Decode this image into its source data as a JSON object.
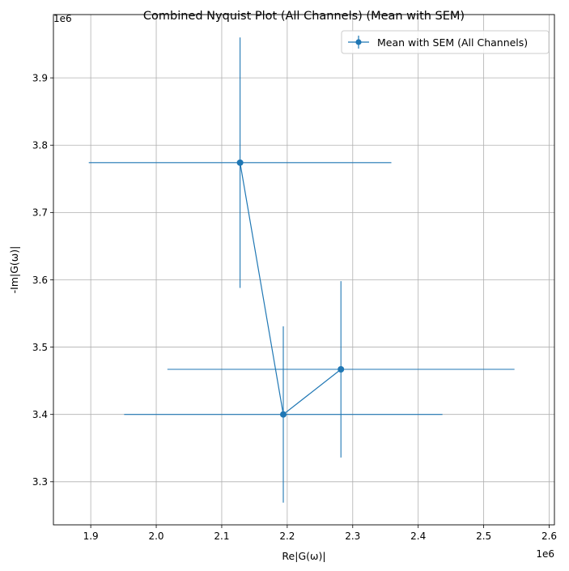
{
  "chart_data": {
    "type": "scatter",
    "title": "Combined Nyquist Plot (All Channels) (Mean with SEM)",
    "xlabel": "Re|G(ω)|",
    "ylabel": "-Im|G(ω)|",
    "x_offset_label": "1e6",
    "y_offset_label": "1e6",
    "xlim": [
      1.843,
      2.608
    ],
    "ylim": [
      3.236,
      3.994
    ],
    "x_ticks": [
      1.9,
      2.0,
      2.1,
      2.2,
      2.3,
      2.4,
      2.5,
      2.6
    ],
    "x_tick_labels": [
      "1.9",
      "2.0",
      "2.1",
      "2.2",
      "2.3",
      "2.4",
      "2.5",
      "2.6"
    ],
    "y_ticks": [
      3.3,
      3.4,
      3.5,
      3.6,
      3.7,
      3.8,
      3.9
    ],
    "y_tick_labels": [
      "3.3",
      "3.4",
      "3.5",
      "3.6",
      "3.7",
      "3.8",
      "3.9"
    ],
    "grid": true,
    "legend_position": "top-right",
    "color": "#1f77b4",
    "series": [
      {
        "name": "Mean with SEM (All Channels)",
        "points": [
          {
            "x": 2.128,
            "y": 3.774,
            "xerr": 0.231,
            "yerr": 0.186
          },
          {
            "x": 2.194,
            "y": 3.4,
            "xerr": 0.243,
            "yerr": 0.131
          },
          {
            "x": 2.282,
            "y": 3.467,
            "xerr": 0.265,
            "yerr": 0.131
          }
        ]
      }
    ]
  }
}
